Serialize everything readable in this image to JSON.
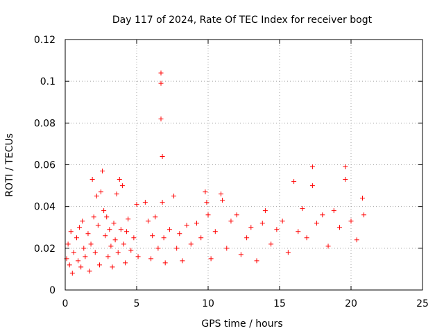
{
  "chart_data": {
    "type": "scatter",
    "title": "Day 117 of 2024, Rate Of TEC Index for receiver bogt",
    "xlabel": "GPS time / hours",
    "ylabel": "ROTI / TECUs",
    "xlim": [
      0,
      25
    ],
    "ylim": [
      0,
      0.12
    ],
    "xticks": [
      0,
      5,
      10,
      15,
      20,
      25
    ],
    "yticks": [
      0,
      0.02,
      0.04,
      0.06,
      0.08,
      0.1,
      0.12
    ],
    "xtick_labels": [
      "0",
      "5",
      "10",
      "15",
      "20",
      "25"
    ],
    "ytick_labels": [
      "0",
      "0.02",
      "0.04",
      "0.06",
      "0.08",
      "0.1",
      "0.12"
    ],
    "grid": true,
    "marker": "+",
    "marker_color": "#ff0000",
    "series": [
      {
        "name": "ROTI",
        "points": [
          [
            0.1,
            0.015
          ],
          [
            0.2,
            0.022
          ],
          [
            0.3,
            0.012
          ],
          [
            0.4,
            0.028
          ],
          [
            0.5,
            0.008
          ],
          [
            0.6,
            0.018
          ],
          [
            0.8,
            0.025
          ],
          [
            0.9,
            0.014
          ],
          [
            1.0,
            0.03
          ],
          [
            1.1,
            0.011
          ],
          [
            1.2,
            0.033
          ],
          [
            1.3,
            0.02
          ],
          [
            1.4,
            0.016
          ],
          [
            1.6,
            0.027
          ],
          [
            1.7,
            0.009
          ],
          [
            1.8,
            0.022
          ],
          [
            1.9,
            0.053
          ],
          [
            2.0,
            0.035
          ],
          [
            2.1,
            0.018
          ],
          [
            2.2,
            0.045
          ],
          [
            2.3,
            0.031
          ],
          [
            2.4,
            0.012
          ],
          [
            2.5,
            0.047
          ],
          [
            2.6,
            0.057
          ],
          [
            2.7,
            0.038
          ],
          [
            2.8,
            0.026
          ],
          [
            2.9,
            0.035
          ],
          [
            3.0,
            0.016
          ],
          [
            3.1,
            0.029
          ],
          [
            3.2,
            0.021
          ],
          [
            3.3,
            0.011
          ],
          [
            3.4,
            0.032
          ],
          [
            3.5,
            0.024
          ],
          [
            3.6,
            0.046
          ],
          [
            3.7,
            0.018
          ],
          [
            3.8,
            0.053
          ],
          [
            3.9,
            0.029
          ],
          [
            4.0,
            0.05
          ],
          [
            4.1,
            0.022
          ],
          [
            4.2,
            0.013
          ],
          [
            4.3,
            0.028
          ],
          [
            4.4,
            0.034
          ],
          [
            4.6,
            0.019
          ],
          [
            4.8,
            0.025
          ],
          [
            5.0,
            0.041
          ],
          [
            5.1,
            0.016
          ],
          [
            5.6,
            0.042
          ],
          [
            5.8,
            0.033
          ],
          [
            6.0,
            0.015
          ],
          [
            6.1,
            0.026
          ],
          [
            6.3,
            0.035
          ],
          [
            6.5,
            0.02
          ],
          [
            6.7,
            0.104
          ],
          [
            6.7,
            0.099
          ],
          [
            6.7,
            0.082
          ],
          [
            6.8,
            0.064
          ],
          [
            6.8,
            0.042
          ],
          [
            6.9,
            0.025
          ],
          [
            7.0,
            0.013
          ],
          [
            7.3,
            0.029
          ],
          [
            7.6,
            0.045
          ],
          [
            7.8,
            0.02
          ],
          [
            8.0,
            0.027
          ],
          [
            8.2,
            0.014
          ],
          [
            8.5,
            0.031
          ],
          [
            8.8,
            0.022
          ],
          [
            9.2,
            0.032
          ],
          [
            9.5,
            0.025
          ],
          [
            9.8,
            0.047
          ],
          [
            9.9,
            0.042
          ],
          [
            10.0,
            0.036
          ],
          [
            10.2,
            0.015
          ],
          [
            10.5,
            0.028
          ],
          [
            10.9,
            0.046
          ],
          [
            11.0,
            0.043
          ],
          [
            11.3,
            0.02
          ],
          [
            11.6,
            0.033
          ],
          [
            12.0,
            0.036
          ],
          [
            12.3,
            0.017
          ],
          [
            12.7,
            0.025
          ],
          [
            13.0,
            0.03
          ],
          [
            13.4,
            0.014
          ],
          [
            13.8,
            0.032
          ],
          [
            14.0,
            0.038
          ],
          [
            14.4,
            0.022
          ],
          [
            14.8,
            0.029
          ],
          [
            15.2,
            0.033
          ],
          [
            15.6,
            0.018
          ],
          [
            16.0,
            0.052
          ],
          [
            16.3,
            0.028
          ],
          [
            16.6,
            0.039
          ],
          [
            16.9,
            0.025
          ],
          [
            17.3,
            0.059
          ],
          [
            17.3,
            0.05
          ],
          [
            17.6,
            0.032
          ],
          [
            18.0,
            0.036
          ],
          [
            18.4,
            0.021
          ],
          [
            18.8,
            0.038
          ],
          [
            19.2,
            0.03
          ],
          [
            19.6,
            0.059
          ],
          [
            19.6,
            0.053
          ],
          [
            20.0,
            0.033
          ],
          [
            20.4,
            0.024
          ],
          [
            20.8,
            0.044
          ],
          [
            20.9,
            0.036
          ]
        ]
      }
    ]
  }
}
